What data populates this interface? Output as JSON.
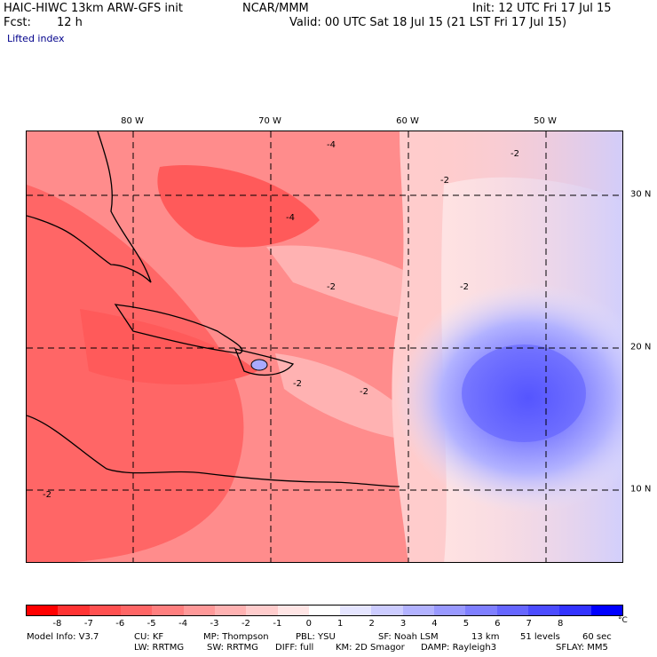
{
  "header": {
    "model": "HAIC-HIWC 13km ARW-GFS init",
    "center": "NCAR/MMM",
    "init": "Init: 12 UTC Fri 17 Jul 15",
    "fcst_label": "Fcst:",
    "fcst_value": "12 h",
    "valid": "Valid: 00 UTC Sat 18 Jul 15 (21 LST Fri 17 Jul 15)",
    "field": "Lifted index"
  },
  "axes": {
    "lon_labels": [
      "80 W",
      "70 W",
      "60 W",
      "50 W"
    ],
    "lat_labels": [
      "30 N",
      "20 N",
      "10 N"
    ]
  },
  "contour_labels": [
    "-4",
    "-2",
    "-2",
    "-2",
    "-2",
    "-4",
    "-2",
    "-2",
    "-2"
  ],
  "colorbar": {
    "colors": [
      "#ff0000",
      "#ff3333",
      "#ff5050",
      "#ff6666",
      "#ff7f7f",
      "#ff9999",
      "#ffb2b2",
      "#ffcccc",
      "#ffe5e5",
      "#ffffff",
      "#e5e5ff",
      "#ccccff",
      "#b2b2ff",
      "#9999ff",
      "#7f7fff",
      "#6666ff",
      "#4c4cff",
      "#3333ff",
      "#0000ff"
    ],
    "ticks": [
      "-8",
      "-7",
      "-6",
      "-5",
      "-4",
      "-3",
      "-2",
      "-1",
      "0",
      "1",
      "2",
      "3",
      "4",
      "5",
      "6",
      "7",
      "8"
    ],
    "unit": "°C"
  },
  "model_info": {
    "line1": [
      "Model Info: V3.7",
      "CU: KF",
      "MP: Thompson",
      "PBL: YSU",
      "SF: Noah LSM",
      "13 km",
      "51 levels",
      "60 sec"
    ],
    "line2": [
      "LW: RRTMG",
      "SW: RRTMG",
      "DIFF: full",
      "KM: 2D Smagor",
      "DAMP: Rayleigh3",
      "SFLAY: MM5"
    ]
  }
}
